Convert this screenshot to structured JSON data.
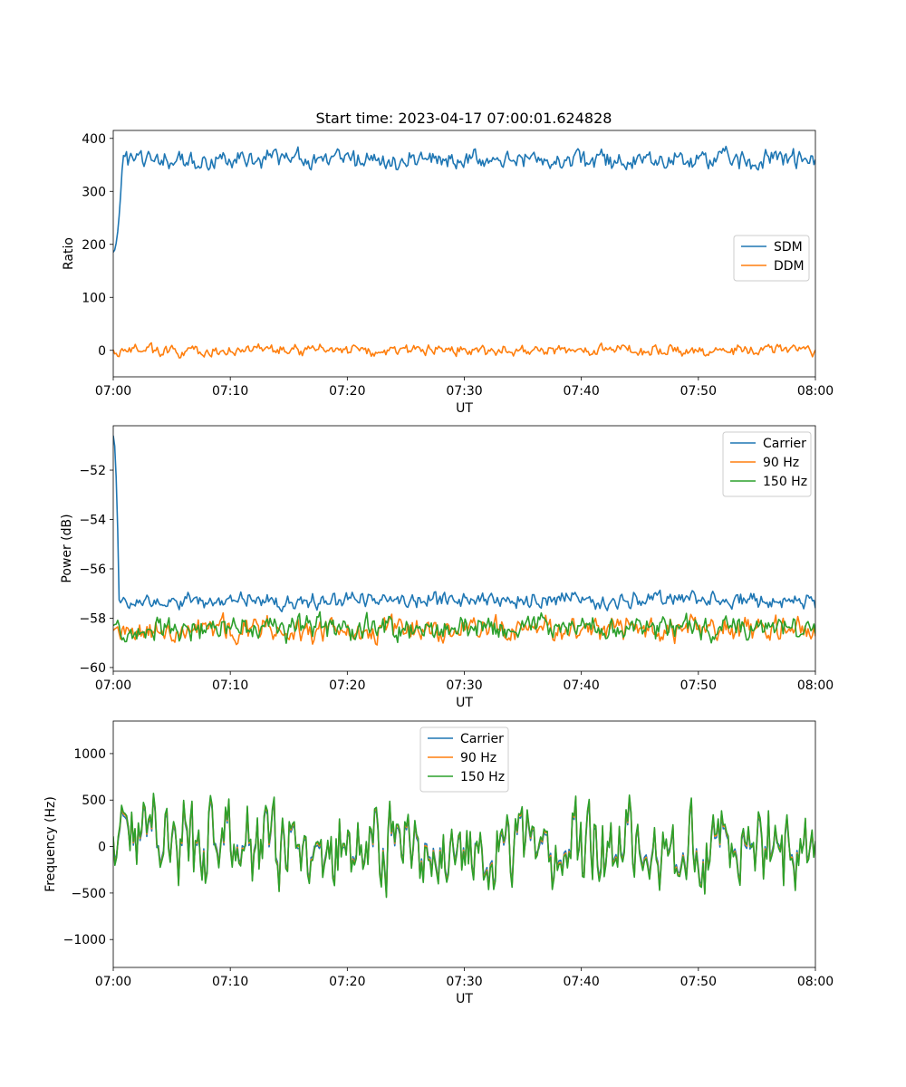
{
  "figure": {
    "title": "Start time: 2023-04-17 07:00:01.624828"
  },
  "chart_data": [
    {
      "type": "line",
      "name": "ratio-panel",
      "xlabel": "UT",
      "ylabel": "Ratio",
      "xlim_minutes": [
        0,
        60
      ],
      "xticks": [
        "07:00",
        "07:10",
        "07:20",
        "07:30",
        "07:40",
        "07:50",
        "08:00"
      ],
      "ylim": [
        -50,
        415
      ],
      "yticks": [
        0,
        100,
        200,
        300,
        400
      ],
      "legend": "center-right",
      "series": [
        {
          "name": "SDM",
          "color": "#1f77b4",
          "model": {
            "start": 185,
            "ramp_to": 360,
            "ramp_minutes": 0.8,
            "mean": 360,
            "amp": 14,
            "seed": 1
          }
        },
        {
          "name": "DDM",
          "color": "#ff7f0e",
          "model": {
            "mean": 0,
            "amp": 8,
            "seed": 2
          }
        }
      ]
    },
    {
      "type": "line",
      "name": "power-panel",
      "xlabel": "UT",
      "ylabel": "Power (dB)",
      "xlim_minutes": [
        0,
        60
      ],
      "xticks": [
        "07:00",
        "07:10",
        "07:20",
        "07:30",
        "07:40",
        "07:50",
        "08:00"
      ],
      "ylim": [
        -60.15,
        -50.2
      ],
      "yticks": [
        -60,
        -58,
        -56,
        -54,
        -52
      ],
      "legend": "top-right",
      "series": [
        {
          "name": "Carrier",
          "color": "#1f77b4",
          "model": {
            "start": -50.6,
            "ramp_to": -57.3,
            "ramp_minutes": 0.5,
            "mean": -57.25,
            "amp": 0.25,
            "seed": 3
          }
        },
        {
          "name": "90 Hz",
          "color": "#ff7f0e",
          "model": {
            "mean": -58.45,
            "amp": 0.38,
            "seed": 4
          }
        },
        {
          "name": "150 Hz",
          "color": "#2ca02c",
          "model": {
            "mean": -58.4,
            "amp": 0.38,
            "seed": 5
          }
        }
      ]
    },
    {
      "type": "line",
      "name": "frequency-panel",
      "xlabel": "UT",
      "ylabel": "Frequency (Hz)",
      "xlim_minutes": [
        0,
        60
      ],
      "xticks": [
        "07:00",
        "07:10",
        "07:20",
        "07:30",
        "07:40",
        "07:50",
        "08:00"
      ],
      "ylim": [
        -1300,
        1350
      ],
      "yticks": [
        -1000,
        -500,
        0,
        500,
        1000
      ],
      "legend": "top-center",
      "series": [
        {
          "name": "Carrier",
          "color": "#1f77b4",
          "model": {
            "mean": 0,
            "amp": 380,
            "seed": 6,
            "offset": -40
          }
        },
        {
          "name": "90 Hz",
          "color": "#ff7f0e",
          "model": {
            "mean": 0,
            "amp": 380,
            "seed": 6,
            "offset": -15
          }
        },
        {
          "name": "150 Hz",
          "color": "#2ca02c",
          "model": {
            "mean": 0,
            "amp": 380,
            "seed": 6,
            "offset": 0
          }
        }
      ]
    }
  ]
}
